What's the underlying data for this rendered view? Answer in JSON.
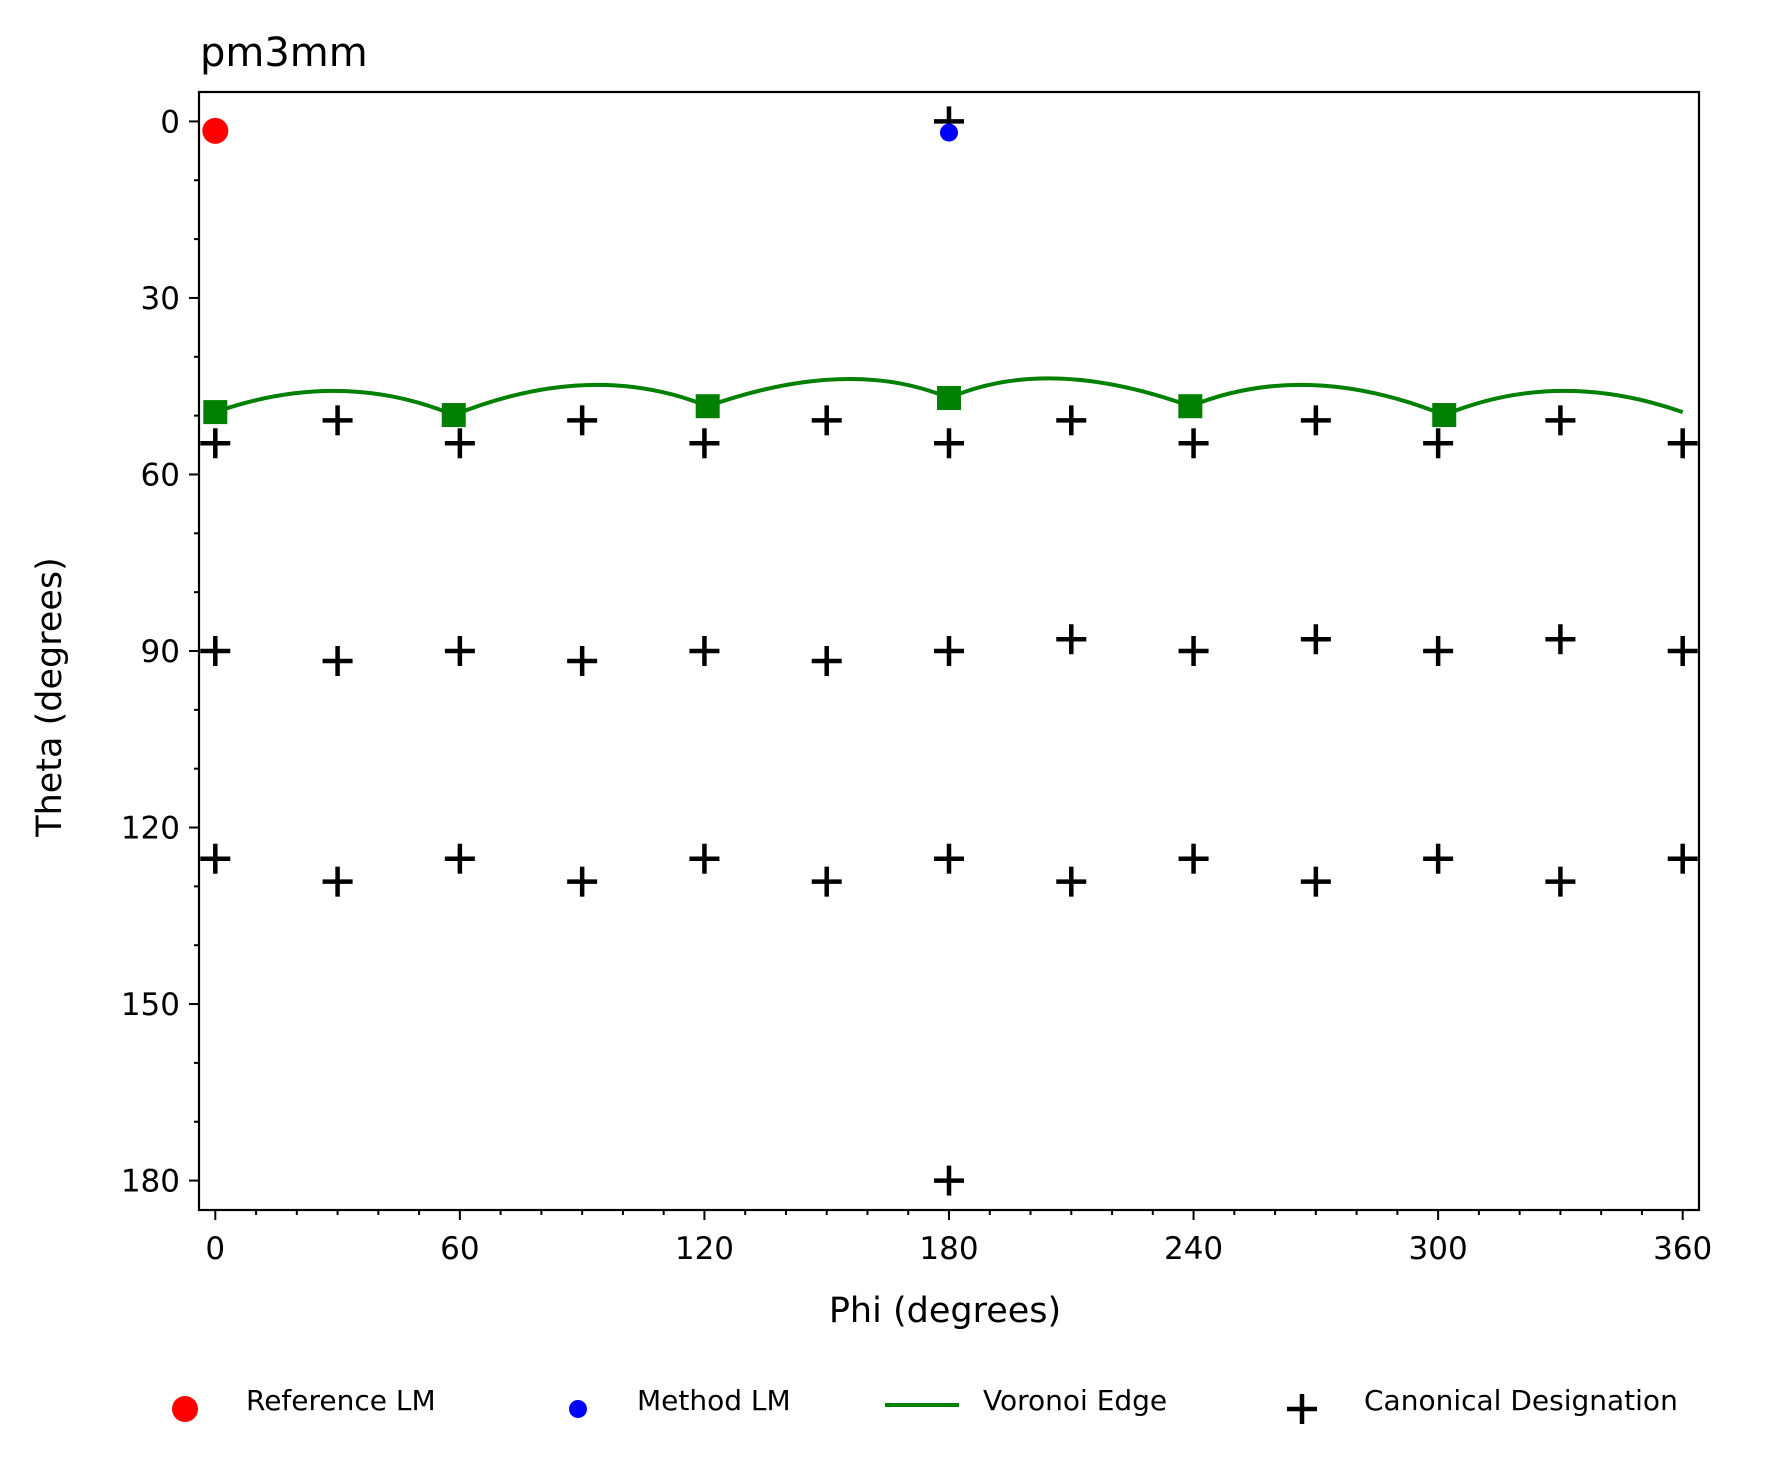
{
  "chart_data": {
    "type": "scatter",
    "title": "pm3mm",
    "xlabel": "Phi (degrees)",
    "ylabel": "Theta (degrees)",
    "xlim": [
      -4,
      364
    ],
    "ylim": [
      185,
      -5
    ],
    "y_axis_inverted": true,
    "xticks": [
      0,
      60,
      120,
      180,
      240,
      300,
      360
    ],
    "yticks": [
      0,
      30,
      60,
      90,
      120,
      150,
      180
    ],
    "xtick_labels": [
      "0",
      "60",
      "120",
      "180",
      "240",
      "300",
      "360"
    ],
    "ytick_labels": [
      "0",
      "30",
      "60",
      "90",
      "120",
      "150",
      "180"
    ],
    "grid": false,
    "legend_position": "bottom, below axes",
    "series": [
      {
        "name": "Reference LM",
        "marker": "circle",
        "color": "#ff0000",
        "points": [
          [
            0,
            1.6
          ]
        ]
      },
      {
        "name": "Method LM",
        "marker": "circle-small",
        "color": "#0000ff",
        "points": [
          [
            180,
            1.9
          ]
        ]
      },
      {
        "name": "Voronoi Edge",
        "marker": "line",
        "color": "#008000",
        "arcs": [
          {
            "start": [
              0,
              49.4
            ],
            "peak": [
              30,
              45.8
            ],
            "end": [
              58.5,
              49.9
            ]
          },
          {
            "start": [
              58.5,
              49.9
            ],
            "peak": [
              91,
              44.8
            ],
            "end": [
              120.8,
              48.4
            ]
          },
          {
            "start": [
              120.8,
              48.4
            ],
            "peak": [
              153,
              43.8
            ],
            "end": [
              180,
              47.0
            ]
          },
          {
            "start": [
              180,
              47.0
            ],
            "peak": [
              207,
              43.7
            ],
            "end": [
              239.2,
              48.4
            ]
          },
          {
            "start": [
              239.2,
              48.4
            ],
            "peak": [
              269,
              44.8
            ],
            "end": [
              301.5,
              49.9
            ]
          },
          {
            "start": [
              301.5,
              49.9
            ],
            "peak": [
              330,
              45.8
            ],
            "end": [
              360,
              49.4
            ]
          }
        ],
        "vertices": [
          [
            0,
            49.4
          ],
          [
            58.5,
            49.9
          ],
          [
            120.8,
            48.4
          ],
          [
            180,
            47.0
          ],
          [
            239.2,
            48.4
          ],
          [
            301.5,
            49.9
          ]
        ]
      },
      {
        "name": "Canonical Designation",
        "marker": "plus",
        "color": "#000000",
        "points": [
          [
            180,
            0
          ],
          [
            30,
            50.8
          ],
          [
            90,
            50.8
          ],
          [
            150,
            50.8
          ],
          [
            210,
            50.8
          ],
          [
            270,
            50.8
          ],
          [
            330,
            50.8
          ],
          [
            0,
            54.7
          ],
          [
            60,
            54.7
          ],
          [
            120,
            54.7
          ],
          [
            180,
            54.7
          ],
          [
            240,
            54.7
          ],
          [
            300,
            54.7
          ],
          [
            360,
            54.7
          ],
          [
            0,
            90
          ],
          [
            60,
            90
          ],
          [
            120,
            90
          ],
          [
            180,
            90
          ],
          [
            240,
            90
          ],
          [
            300,
            90
          ],
          [
            360,
            90
          ],
          [
            30,
            91.7
          ],
          [
            90,
            91.7
          ],
          [
            150,
            91.7
          ],
          [
            210,
            88
          ],
          [
            270,
            88
          ],
          [
            330,
            88
          ],
          [
            0,
            125.3
          ],
          [
            60,
            125.3
          ],
          [
            120,
            125.3
          ],
          [
            180,
            125.3
          ],
          [
            240,
            125.3
          ],
          [
            300,
            125.3
          ],
          [
            360,
            125.3
          ],
          [
            30,
            129.2
          ],
          [
            90,
            129.2
          ],
          [
            150,
            129.2
          ],
          [
            210,
            129.2
          ],
          [
            270,
            129.2
          ],
          [
            330,
            129.2
          ],
          [
            180,
            180
          ]
        ]
      }
    ]
  }
}
